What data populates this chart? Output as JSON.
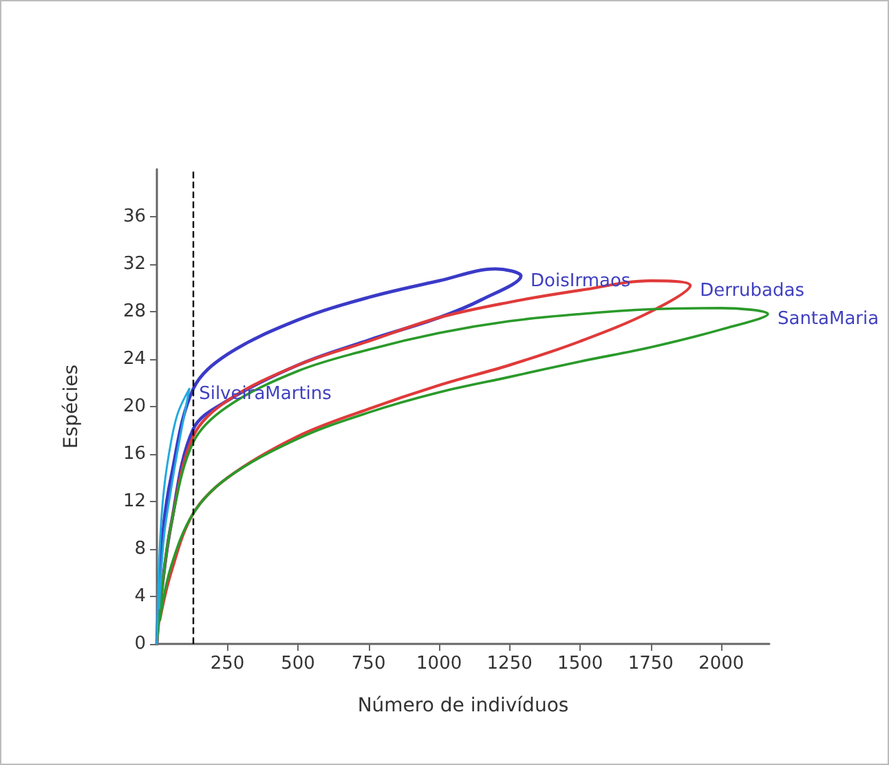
{
  "chart_data": {
    "type": "line",
    "xlabel": "Número de indivíduos",
    "ylabel": "Espécies",
    "xlim": [
      0,
      2170
    ],
    "xticks": [
      250,
      500,
      750,
      1000,
      1250,
      1500,
      1750,
      2000
    ],
    "ylim": [
      0,
      40
    ],
    "yticks": [
      0,
      4,
      8,
      12,
      16,
      20,
      24,
      28,
      32,
      36
    ],
    "marker": "none",
    "line_style": "solid",
    "series": [
      {
        "name": "DoisIrmaos",
        "color": "#3a3ac8",
        "x": [
          15,
          50,
          129,
          250,
          500,
          750,
          1000,
          1150,
          1290,
          1200,
          1000,
          750,
          500,
          250,
          129,
          50,
          20,
          0
        ],
        "values": [
          4,
          10,
          18.1,
          20.5,
          23.5,
          25.6,
          27.5,
          29,
          31,
          31.6,
          30.6,
          29.2,
          27.3,
          24.4,
          21.5,
          14,
          9,
          0
        ]
      },
      {
        "name": "Derrubadas",
        "color": "#e03a3a",
        "x": [
          10,
          50,
          129,
          250,
          500,
          750,
          1000,
          1250,
          1500,
          1750,
          1890,
          1750,
          1500,
          1250,
          1000,
          750,
          500,
          250,
          129,
          50,
          20,
          0
        ],
        "values": [
          2,
          6,
          11,
          14,
          17.5,
          19.8,
          21.8,
          23.5,
          25.5,
          28,
          30.2,
          30.6,
          29.8,
          28.8,
          27.5,
          25.5,
          23.5,
          20.5,
          17.5,
          10,
          5,
          0
        ]
      },
      {
        "name": "SantaMaria",
        "color": "#2a9a2a",
        "x": [
          10,
          50,
          129,
          250,
          500,
          750,
          1000,
          1250,
          1500,
          1750,
          2000,
          2165,
          2000,
          1750,
          1500,
          1250,
          1000,
          750,
          500,
          250,
          129,
          50,
          20,
          0
        ],
        "values": [
          2,
          6.5,
          11,
          14,
          17.3,
          19.5,
          21.2,
          22.5,
          23.8,
          25,
          26.5,
          27.8,
          28.3,
          28.2,
          27.8,
          27.2,
          26.2,
          24.8,
          23,
          20,
          17,
          10,
          5,
          0
        ]
      },
      {
        "name": "SilveiraMartins",
        "color": "#22aadd",
        "x": [
          8,
          25,
          50,
          75,
          115,
          75,
          50,
          25,
          10,
          0
        ],
        "values": [
          3,
          9,
          13,
          16.5,
          21.5,
          19.5,
          17,
          13,
          8,
          0
        ]
      }
    ],
    "ref_lines": [
      {
        "axis": "x",
        "value": 129,
        "color": "#000000",
        "line_style": "dashed"
      }
    ]
  }
}
